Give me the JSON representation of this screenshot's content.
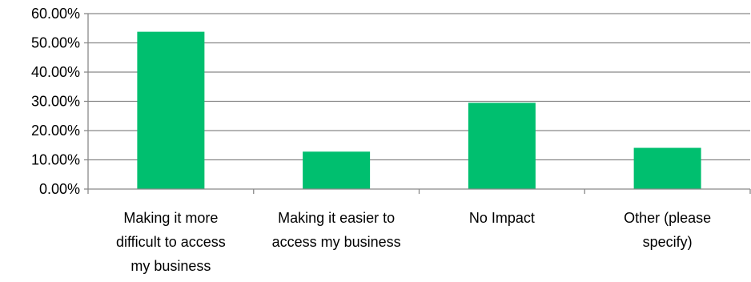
{
  "chart_data": {
    "type": "bar",
    "title": "",
    "xlabel": "",
    "ylabel": "",
    "categories": [
      [
        "Making it more",
        "difficult to access",
        "my business"
      ],
      [
        "Making it easier to",
        "access my business"
      ],
      [
        "No Impact"
      ],
      [
        "Other (please",
        "specify)"
      ]
    ],
    "values": [
      53.8,
      12.8,
      29.5,
      14.1
    ],
    "ylim": [
      0,
      60
    ],
    "y_ticks": [
      "0.00%",
      "10.00%",
      "20.00%",
      "30.00%",
      "40.00%",
      "50.00%",
      "60.00%"
    ],
    "y_tick_values": [
      0,
      10,
      20,
      30,
      40,
      50,
      60
    ],
    "grid": true,
    "legend": "none",
    "bar_color": "#00BF6F",
    "gridline_color": "#898989"
  }
}
